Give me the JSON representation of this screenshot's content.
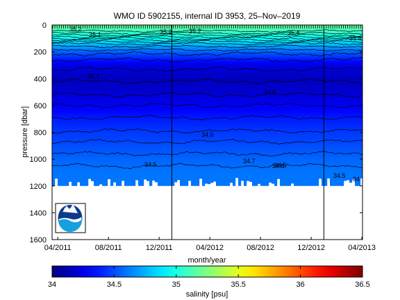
{
  "chart_data": {
    "type": "heatmap",
    "title": "WMO ID 5902155, internal ID 3953, 25–Nov–2019",
    "xlabel": "month/year",
    "ylabel": "pressure [dbar]",
    "x_ticks": [
      "04/2011",
      "08/2011",
      "12/2011",
      "04/2012",
      "08/2012",
      "12/2012",
      "04/2013"
    ],
    "x_range": [
      "2011-03",
      "2013-04"
    ],
    "y_ticks": [
      0,
      200,
      400,
      600,
      800,
      1000,
      1200,
      1400,
      1600
    ],
    "y_range": [
      1600,
      0
    ],
    "y_reversed": true,
    "colorbar": {
      "label": "salinity [psu]",
      "ticks": [
        34,
        34.5,
        35,
        35.5,
        36,
        36.5
      ],
      "range": [
        34,
        36.5
      ],
      "colormap": "jet"
    },
    "contour_labels": [
      "35.4",
      "35.4",
      "35.2",
      "35.2",
      "35.1",
      "35.2",
      "35.1",
      "34.5",
      "34.6",
      "34.7",
      "34.5",
      "34.6",
      "34.5",
      "34.5",
      "34"
    ],
    "profile_region_salinity": [
      {
        "pressure": 0,
        "salinity": 35.2
      },
      {
        "pressure": 100,
        "salinity": 34.95
      },
      {
        "pressure": 200,
        "salinity": 34.55
      },
      {
        "pressure": 300,
        "salinity": 34.25
      },
      {
        "pressure": 400,
        "salinity": 34.15
      },
      {
        "pressure": 500,
        "salinity": 34.2
      },
      {
        "pressure": 600,
        "salinity": 34.28
      },
      {
        "pressure": 700,
        "salinity": 34.38
      },
      {
        "pressure": 800,
        "salinity": 34.45
      },
      {
        "pressure": 900,
        "salinity": 34.5
      },
      {
        "pressure": 1000,
        "salinity": 34.56
      },
      {
        "pressure": 1100,
        "salinity": 34.6
      }
    ],
    "vertical_lines": [
      "2012-01",
      "2013-01"
    ],
    "logo": "noaa-logo"
  }
}
